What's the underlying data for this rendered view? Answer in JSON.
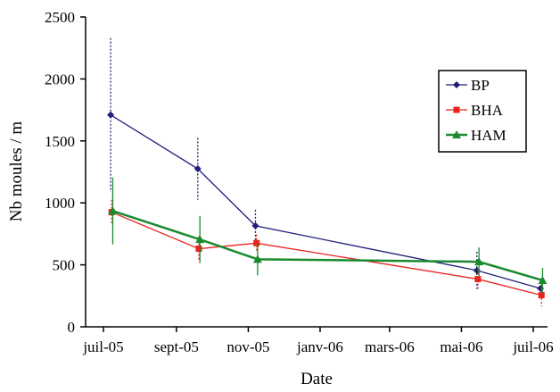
{
  "chart_data": {
    "type": "line",
    "xlabel": "Date",
    "ylabel": "Nb moules / m",
    "ylim": [
      0,
      2500
    ],
    "yticks": [
      0,
      500,
      1000,
      1500,
      2000,
      2500
    ],
    "xticks": [
      "juil-05",
      "sept-05",
      "nov-05",
      "janv-06",
      "mars-06",
      "mai-06",
      "juil-06"
    ],
    "xlim": [
      "2005-07-01",
      "2006-07-01"
    ],
    "legend_position": "top-right",
    "grid": false,
    "series": [
      {
        "name": "BP",
        "color": "#1f1f7a",
        "marker": "diamond",
        "dates": [
          "2005-07-08",
          "2005-09-20",
          "2005-11-08",
          "2006-05-15",
          "2006-07-08"
        ],
        "values": [
          1710,
          1275,
          815,
          455,
          310
        ],
        "errors": [
          620,
          250,
          130,
          150,
          50
        ]
      },
      {
        "name": "BHA",
        "color": "#e8241e",
        "marker": "square",
        "dates": [
          "2005-07-08",
          "2005-09-20",
          "2005-11-08",
          "2006-05-15",
          "2006-07-08"
        ],
        "values": [
          925,
          630,
          675,
          385,
          255
        ],
        "errors": [
          100,
          100,
          70,
          80,
          90
        ]
      },
      {
        "name": "HAM",
        "color": "#1a8a2e",
        "marker": "triangle",
        "dates": [
          "2005-07-08",
          "2005-09-20",
          "2005-11-08",
          "2006-05-15",
          "2006-07-08"
        ],
        "values": [
          935,
          705,
          545,
          525,
          375
        ],
        "errors": [
          270,
          190,
          130,
          115,
          100
        ]
      }
    ]
  }
}
